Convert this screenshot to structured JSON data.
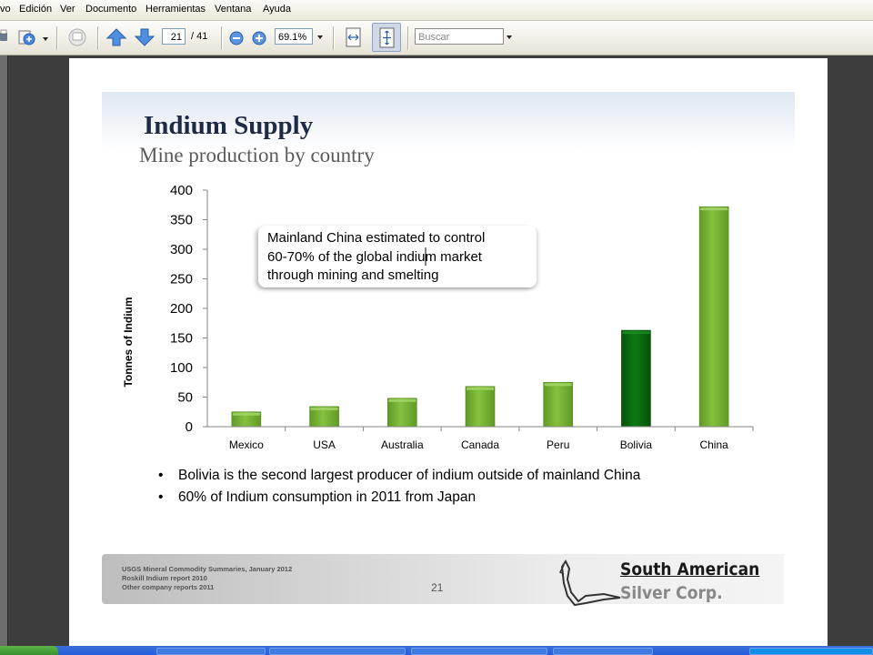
{
  "menu": {
    "items": [
      "vo",
      "Edición",
      "Ver",
      "Documento",
      "Herramientas",
      "Ventana",
      "Ayuda"
    ]
  },
  "toolbar": {
    "current_page": "21",
    "total_pages": "/ 41",
    "zoom": "69.1%",
    "search_placeholder": "Buscar",
    "icons": [
      "print-icon",
      "attach-icon",
      "comment-icon",
      "page-up-icon",
      "page-down-icon",
      "zoom-out-icon",
      "zoom-in-icon",
      "fit-width-icon",
      "fit-page-icon"
    ]
  },
  "slide": {
    "title": "Indium Supply",
    "subtitle": "Mine production by country",
    "callout": [
      "Mainland China estimated to control",
      "60-70% of the global indium market",
      "through mining and smelting"
    ],
    "bullets": [
      "Bolivia is the second largest producer of indium outside of mainland China",
      "60% of Indium consumption in 2011 from Japan"
    ],
    "bullet_glyph": "•",
    "sources": [
      "USGS Mineral Commodity Summaries, January 2012",
      "Roskill Indium report 2010",
      "Other company reports 2011"
    ],
    "page_number": "21",
    "logo_line1": "South American",
    "logo_line2": "Silver Corp."
  },
  "chart_data": {
    "type": "bar",
    "categories": [
      "Mexico",
      "USA",
      "Australia",
      "Canada",
      "Peru",
      "Bolivia",
      "China"
    ],
    "values": [
      25,
      34,
      48,
      68,
      75,
      163,
      372
    ],
    "xlabel": "",
    "ylabel": "Tonnes of Indium",
    "ylim": [
      0,
      400
    ],
    "yticks": [
      0,
      50,
      100,
      150,
      200,
      250,
      300,
      350,
      400
    ],
    "grid": false,
    "colors": {
      "default": "#77b236",
      "highlight": "#0b6b0b",
      "highlight_category": "Bolivia"
    }
  }
}
